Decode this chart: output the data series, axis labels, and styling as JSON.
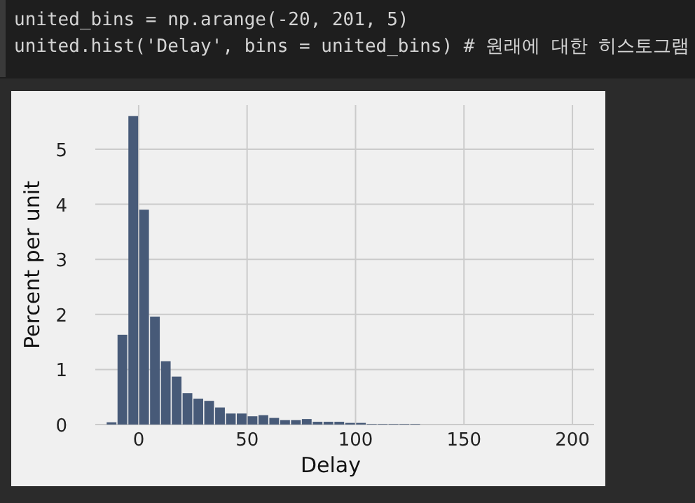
{
  "chart_data": {
    "type": "histogram",
    "xlabel": "Delay",
    "ylabel": "Percent per unit",
    "annotations": [
      "united_bins = np.arange(-20, 201, 5)",
      "united.hist('Delay', bins = united_bins) # 원래에 대한 히스토그램"
    ],
    "bins": [
      -20,
      -15,
      -10,
      -5,
      0,
      5,
      10,
      15,
      20,
      25,
      30,
      35,
      40,
      45,
      50,
      55,
      60,
      65,
      70,
      75,
      80,
      85,
      90,
      95,
      100,
      105,
      110,
      115,
      120,
      125,
      130,
      135,
      140,
      145,
      150,
      155,
      160,
      165,
      170,
      175,
      180,
      185,
      190,
      195,
      200
    ],
    "values": [
      0,
      0.04,
      1.63,
      5.6,
      3.9,
      1.96,
      1.15,
      0.87,
      0.57,
      0.47,
      0.43,
      0.31,
      0.2,
      0.2,
      0.15,
      0.17,
      0.12,
      0.08,
      0.08,
      0.1,
      0.05,
      0.05,
      0.05,
      0.03,
      0.03,
      0.01,
      0.01,
      0.01,
      0.01,
      0.01,
      0,
      0,
      0,
      0,
      0,
      0,
      0,
      0,
      0,
      0,
      0,
      0,
      0,
      0
    ],
    "color": "#475a78",
    "xlim": [
      -20,
      210
    ],
    "ylim": [
      0,
      5.8
    ],
    "xticks": [
      0,
      50,
      100,
      150,
      200
    ],
    "yticks": [
      0,
      1,
      2,
      3,
      4,
      5
    ],
    "grid": true
  }
}
